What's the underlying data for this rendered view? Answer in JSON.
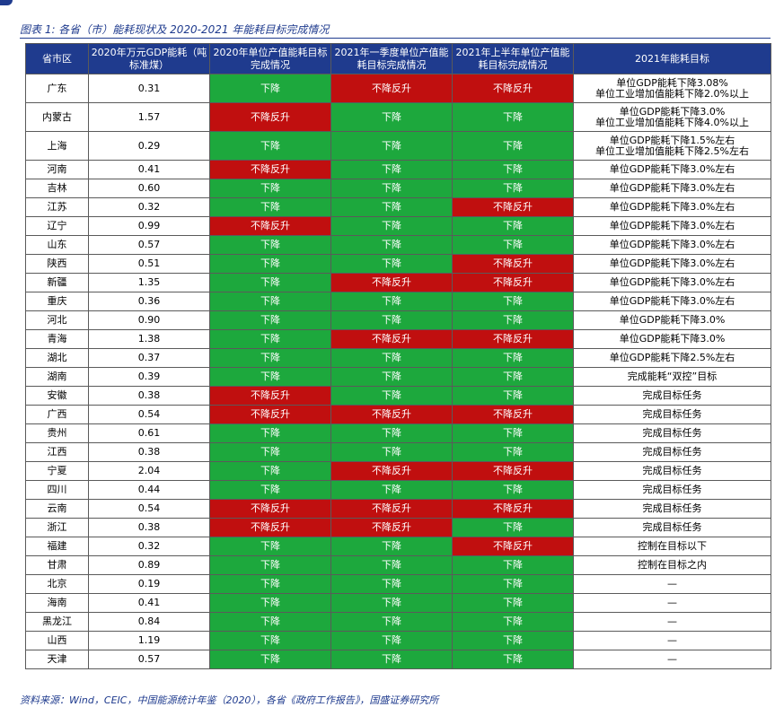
{
  "title": "图表 1: 各省（市）能耗现状及 2020-2021 年能耗目标完成情况",
  "source": "资料来源：Wind，CEIC，中国能源统计年鉴（2020），各省《政府工作报告》，国盛证券研究所",
  "headers": [
    "省市区",
    "2020年万元GDP能耗（吨标准煤）",
    "2020年单位产值能耗目标完成情况",
    "2021年一季度单位产值能耗目标完成情况",
    "2021年上半年单位产值能耗目标完成情况",
    "2021年能耗目标"
  ],
  "rows": [
    {
      "province": "广东",
      "energy": "0.31",
      "s2020": "下降",
      "q1": "不降反升",
      "h1": "不降反升",
      "target": "单位GDP能耗下降3.08%\n单位工业增加值能耗下降2.0%以上"
    },
    {
      "province": "内蒙古",
      "energy": "1.57",
      "s2020": "不降反升",
      "q1": "下降",
      "h1": "下降",
      "target": "单位GDP能耗下降3.0%\n单位工业增加值能耗下降4.0%以上"
    },
    {
      "province": "上海",
      "energy": "0.29",
      "s2020": "下降",
      "q1": "下降",
      "h1": "下降",
      "target": "单位GDP能耗下降1.5%左右\n单位工业增加值能耗下降2.5%左右"
    },
    {
      "province": "河南",
      "energy": "0.41",
      "s2020": "不降反升",
      "q1": "下降",
      "h1": "下降",
      "target": "单位GDP能耗下降3.0%左右"
    },
    {
      "province": "吉林",
      "energy": "0.60",
      "s2020": "下降",
      "q1": "下降",
      "h1": "下降",
      "target": "单位GDP能耗下降3.0%左右"
    },
    {
      "province": "江苏",
      "energy": "0.32",
      "s2020": "下降",
      "q1": "下降",
      "h1": "不降反升",
      "target": "单位GDP能耗下降3.0%左右"
    },
    {
      "province": "辽宁",
      "energy": "0.99",
      "s2020": "不降反升",
      "q1": "下降",
      "h1": "下降",
      "target": "单位GDP能耗下降3.0%左右"
    },
    {
      "province": "山东",
      "energy": "0.57",
      "s2020": "下降",
      "q1": "下降",
      "h1": "下降",
      "target": "单位GDP能耗下降3.0%左右"
    },
    {
      "province": "陕西",
      "energy": "0.51",
      "s2020": "下降",
      "q1": "下降",
      "h1": "不降反升",
      "target": "单位GDP能耗下降3.0%左右"
    },
    {
      "province": "新疆",
      "energy": "1.35",
      "s2020": "下降",
      "q1": "不降反升",
      "h1": "不降反升",
      "target": "单位GDP能耗下降3.0%左右"
    },
    {
      "province": "重庆",
      "energy": "0.36",
      "s2020": "下降",
      "q1": "下降",
      "h1": "下降",
      "target": "单位GDP能耗下降3.0%左右"
    },
    {
      "province": "河北",
      "energy": "0.90",
      "s2020": "下降",
      "q1": "下降",
      "h1": "下降",
      "target": "单位GDP能耗下降3.0%"
    },
    {
      "province": "青海",
      "energy": "1.38",
      "s2020": "下降",
      "q1": "不降反升",
      "h1": "不降反升",
      "target": "单位GDP能耗下降3.0%"
    },
    {
      "province": "湖北",
      "energy": "0.37",
      "s2020": "下降",
      "q1": "下降",
      "h1": "下降",
      "target": "单位GDP能耗下降2.5%左右"
    },
    {
      "province": "湖南",
      "energy": "0.39",
      "s2020": "下降",
      "q1": "下降",
      "h1": "下降",
      "target": "完成能耗“双控”目标"
    },
    {
      "province": "安徽",
      "energy": "0.38",
      "s2020": "不降反升",
      "q1": "下降",
      "h1": "下降",
      "target": "完成目标任务"
    },
    {
      "province": "广西",
      "energy": "0.54",
      "s2020": "不降反升",
      "q1": "不降反升",
      "h1": "不降反升",
      "target": "完成目标任务"
    },
    {
      "province": "贵州",
      "energy": "0.61",
      "s2020": "下降",
      "q1": "下降",
      "h1": "下降",
      "target": "完成目标任务"
    },
    {
      "province": "江西",
      "energy": "0.38",
      "s2020": "下降",
      "q1": "下降",
      "h1": "下降",
      "target": "完成目标任务"
    },
    {
      "province": "宁夏",
      "energy": "2.04",
      "s2020": "下降",
      "q1": "不降反升",
      "h1": "不降反升",
      "target": "完成目标任务"
    },
    {
      "province": "四川",
      "energy": "0.44",
      "s2020": "下降",
      "q1": "下降",
      "h1": "下降",
      "target": "完成目标任务"
    },
    {
      "province": "云南",
      "energy": "0.54",
      "s2020": "不降反升",
      "q1": "不降反升",
      "h1": "不降反升",
      "target": "完成目标任务"
    },
    {
      "province": "浙江",
      "energy": "0.38",
      "s2020": "不降反升",
      "q1": "不降反升",
      "h1": "下降",
      "target": "完成目标任务"
    },
    {
      "province": "福建",
      "energy": "0.32",
      "s2020": "下降",
      "q1": "下降",
      "h1": "不降反升",
      "target": "控制在目标以下"
    },
    {
      "province": "甘肃",
      "energy": "0.89",
      "s2020": "下降",
      "q1": "下降",
      "h1": "下降",
      "target": "控制在目标之内"
    },
    {
      "province": "北京",
      "energy": "0.19",
      "s2020": "下降",
      "q1": "下降",
      "h1": "下降",
      "target": "—"
    },
    {
      "province": "海南",
      "energy": "0.41",
      "s2020": "下降",
      "q1": "下降",
      "h1": "下降",
      "target": "—"
    },
    {
      "province": "黑龙江",
      "energy": "0.84",
      "s2020": "下降",
      "q1": "下降",
      "h1": "下降",
      "target": "—"
    },
    {
      "province": "山西",
      "energy": "1.19",
      "s2020": "下降",
      "q1": "下降",
      "h1": "下降",
      "target": "—"
    },
    {
      "province": "天津",
      "energy": "0.57",
      "s2020": "下降",
      "q1": "下降",
      "h1": "下降",
      "target": "—"
    }
  ],
  "colors": {
    "header_bg": "#1f3b8e",
    "down_green": "#1da83d",
    "up_red": "#c00f0f"
  }
}
